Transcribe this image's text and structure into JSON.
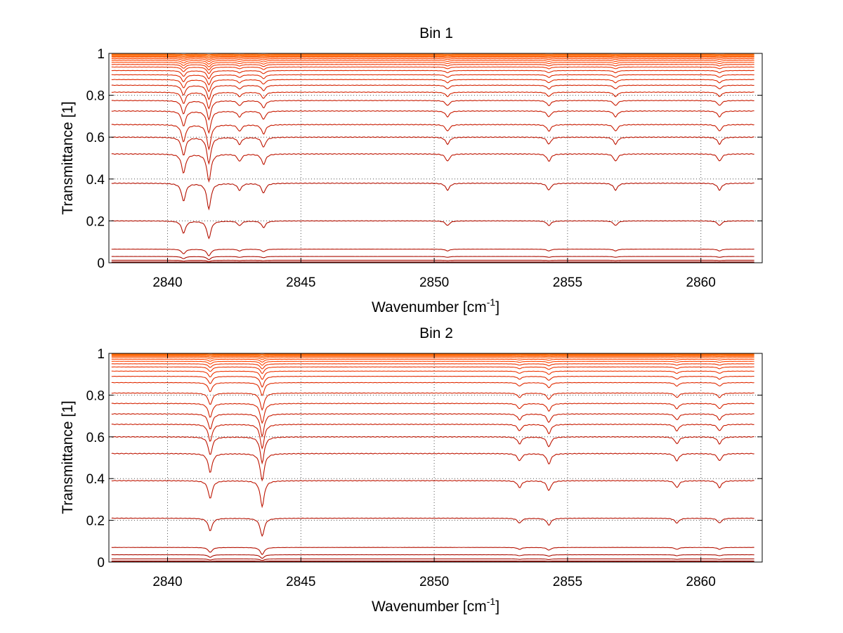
{
  "chart_data": [
    {
      "type": "line",
      "title": "Bin 1",
      "xlabel": "Wavenumber [cm",
      "xlabel_sup": "-1",
      "xlabel_end": "]",
      "ylabel": "Transmittance [1]",
      "xlim": [
        2837.8,
        2862.3
      ],
      "ylim": [
        0,
        1
      ],
      "x_ticks": [
        2840,
        2845,
        2850,
        2855,
        2860
      ],
      "y_ticks": [
        0,
        0.2,
        0.4,
        0.6,
        0.8,
        1
      ],
      "y_tick_labels": [
        "0",
        "0.2",
        "0.4",
        "0.6",
        "0.8",
        "1"
      ],
      "grid": true,
      "x_range": [
        2837.9,
        2862.0
      ],
      "line_centers": [
        2840.6,
        2841.55,
        2842.7,
        2843.6,
        2850.5,
        2854.3,
        2856.8,
        2860.7
      ],
      "series_baselines": [
        0.996,
        0.993,
        0.989,
        0.985,
        0.98,
        0.974,
        0.966,
        0.957,
        0.947,
        0.935,
        0.918,
        0.898,
        0.875,
        0.848,
        0.815,
        0.775,
        0.725,
        0.66,
        0.6,
        0.52,
        0.38,
        0.2,
        0.065,
        0.03,
        0.012,
        0.004,
        0.001
      ],
      "colors": [
        "#ff6600",
        "#ff5500",
        "#ff4400",
        "#ee3300",
        "#e02a00",
        "#d42200",
        "#c81a00",
        "#be1400",
        "#b41000",
        "#aa0c00",
        "#a00800"
      ]
    },
    {
      "type": "line",
      "title": "Bin 2",
      "xlabel": "Wavenumber [cm",
      "xlabel_sup": "-1",
      "xlabel_end": "]",
      "ylabel": "Transmittance [1]",
      "xlim": [
        2837.8,
        2862.3
      ],
      "ylim": [
        0,
        1
      ],
      "x_ticks": [
        2840,
        2845,
        2850,
        2855,
        2860
      ],
      "y_ticks": [
        0,
        0.2,
        0.4,
        0.6,
        0.8,
        1
      ],
      "y_tick_labels": [
        "0",
        "0.2",
        "0.4",
        "0.6",
        "0.8",
        "1"
      ],
      "grid": true,
      "x_range": [
        2837.9,
        2862.0
      ],
      "line_centers": [
        2841.6,
        2843.55,
        2853.2,
        2854.3,
        2859.1,
        2860.7
      ],
      "series_baselines": [
        0.997,
        0.994,
        0.99,
        0.986,
        0.98,
        0.972,
        0.962,
        0.95,
        0.935,
        0.915,
        0.89,
        0.86,
        0.81,
        0.76,
        0.71,
        0.66,
        0.6,
        0.52,
        0.39,
        0.21,
        0.07,
        0.035,
        0.015,
        0.005,
        0.001
      ],
      "colors": [
        "#ff6600",
        "#ff5500",
        "#ff4400",
        "#ee3300",
        "#e02a00",
        "#d42200",
        "#c81a00",
        "#be1400",
        "#b41000",
        "#aa0c00",
        "#a00800"
      ]
    }
  ]
}
